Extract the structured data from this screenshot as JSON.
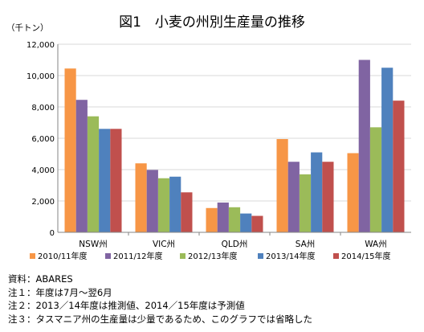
{
  "chart_data": {
    "type": "bar",
    "title": "図1　小麦の州別生産量の推移",
    "unit_label": "（千トン）",
    "xlabel": "",
    "ylabel": "",
    "categories": [
      "NSW州",
      "VIC州",
      "QLD州",
      "SA州",
      "WA州"
    ],
    "series": [
      {
        "name": "2010/11年度",
        "color": "#F79646",
        "values": [
          10450,
          4400,
          1550,
          5950,
          5050
        ]
      },
      {
        "name": "2011/12年度",
        "color": "#8064A2",
        "values": [
          8450,
          3980,
          1900,
          4500,
          11000
        ]
      },
      {
        "name": "2012/13年度",
        "color": "#9BBB59",
        "values": [
          7400,
          3450,
          1600,
          3700,
          6700
        ]
      },
      {
        "name": "2013/14年度",
        "color": "#4F81BD",
        "values": [
          6600,
          3550,
          1200,
          5100,
          10500
        ]
      },
      {
        "name": "2014/15年度",
        "color": "#C0504D",
        "values": [
          6600,
          2550,
          1050,
          4500,
          8400
        ]
      }
    ],
    "ylim": [
      0,
      12000
    ],
    "yticks": [
      "0",
      "2,000",
      "4,000",
      "6,000",
      "8,000",
      "10,000",
      "12,000"
    ],
    "grid": true,
    "legend_position": "bottom"
  },
  "notes": [
    "資料：ABARES",
    "注１：年度は7月～翌6月",
    "注２：2013／14年度は推測値、2014／15年度は予測値",
    "注３：タスマニア州の生産量は少量であるため、このグラフでは省略した"
  ]
}
